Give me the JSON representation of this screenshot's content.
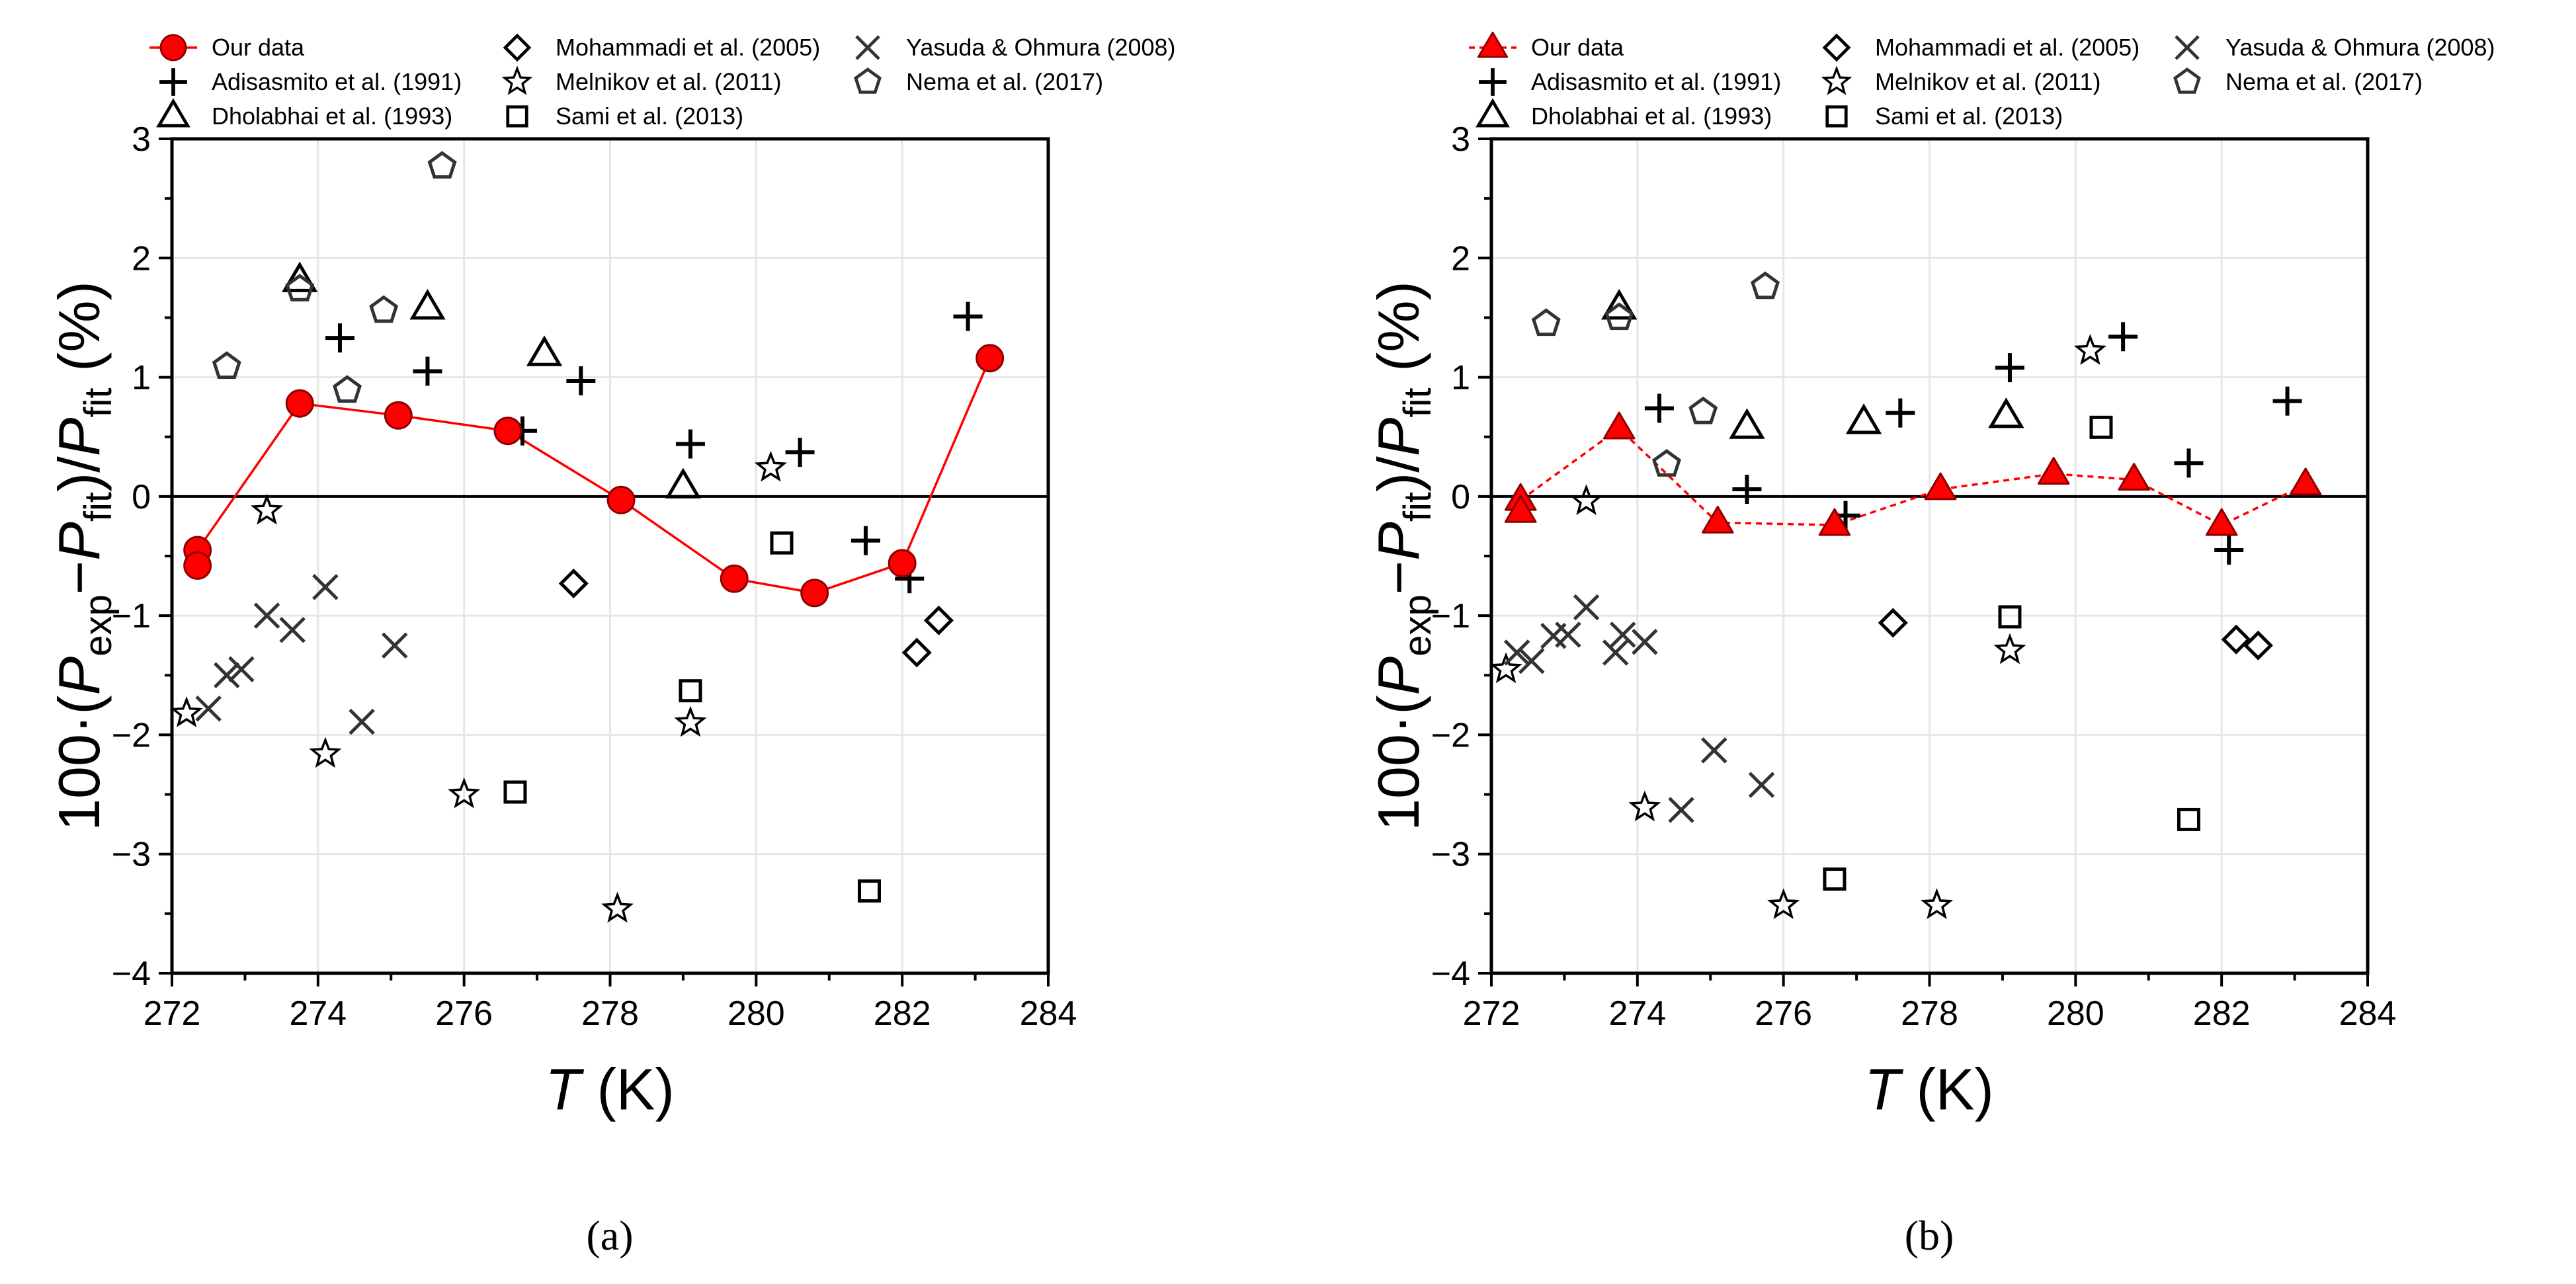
{
  "legend": {
    "items": [
      {
        "label": "Our data",
        "marker": "main"
      },
      {
        "label": "Adisasmito et al. (1991)",
        "marker": "plus"
      },
      {
        "label": "Dholabhai et al. (1993)",
        "marker": "triangle-open"
      },
      {
        "label": "Mohammadi et al. (2005)",
        "marker": "diamond"
      },
      {
        "label": "Melnikov et al. (2011)",
        "marker": "star"
      },
      {
        "label": "Sami et al. (2013)",
        "marker": "square"
      },
      {
        "label": "Yasuda & Ohmura (2008)",
        "marker": "cross"
      },
      {
        "label": "Nema et al. (2017)",
        "marker": "pentagon"
      }
    ]
  },
  "axes": {
    "ylabel_prefix": "100·(",
    "p_symbol": "P",
    "exp_sub": "exp",
    "minus": "−",
    "fit_sub": "fit",
    "slash": ")/",
    "ylabel_suffix": " (%)",
    "xlabel_var": "T",
    "xlabel_unit": " (K)"
  },
  "colors": {
    "accent": "#ff0000",
    "accent_dark": "#8b0000",
    "marker": "#000000",
    "grid": "#e6e6e6"
  },
  "chart_data": [
    {
      "panel_label": "(a)",
      "type": "scatter",
      "xlim": [
        272,
        284
      ],
      "ylim": [
        -4,
        3
      ],
      "xticks": [
        272,
        274,
        276,
        278,
        280,
        282,
        284
      ],
      "yticks": [
        -4,
        -3,
        -2,
        -1,
        0,
        1,
        2,
        3
      ],
      "main_series": {
        "name": "Our data",
        "marker": "circle",
        "line": "solid",
        "points": [
          [
            272.35,
            -0.45
          ],
          [
            272.35,
            -0.58
          ],
          [
            273.75,
            0.78
          ],
          [
            275.1,
            0.68
          ],
          [
            276.6,
            0.55
          ],
          [
            278.15,
            -0.03
          ],
          [
            279.7,
            -0.69
          ],
          [
            280.8,
            -0.81
          ],
          [
            282.0,
            -0.56
          ],
          [
            283.2,
            1.16
          ]
        ],
        "line_order": [
          [
            272.35,
            -0.45
          ],
          [
            273.75,
            0.78
          ],
          [
            275.1,
            0.68
          ],
          [
            276.6,
            0.55
          ],
          [
            278.15,
            -0.03
          ],
          [
            279.7,
            -0.69
          ],
          [
            280.8,
            -0.81
          ],
          [
            282.0,
            -0.56
          ],
          [
            283.2,
            1.16
          ]
        ]
      },
      "series": [
        {
          "name": "Adisasmito et al. (1991)",
          "marker": "plus",
          "points": [
            [
              274.3,
              1.33
            ],
            [
              275.5,
              1.05
            ],
            [
              276.8,
              0.55
            ],
            [
              277.6,
              0.97
            ],
            [
              279.1,
              0.44
            ],
            [
              280.6,
              0.37
            ],
            [
              281.5,
              -0.37
            ],
            [
              282.1,
              -0.69
            ],
            [
              282.9,
              1.51
            ]
          ]
        },
        {
          "name": "Dholabhai et al. (1993)",
          "marker": "triangle-open",
          "points": [
            [
              273.75,
              1.81
            ],
            [
              275.5,
              1.58
            ],
            [
              277.1,
              1.19
            ],
            [
              279.0,
              0.08
            ]
          ]
        },
        {
          "name": "Mohammadi et al. (2005)",
          "marker": "diamond",
          "points": [
            [
              277.5,
              -0.73
            ],
            [
              282.2,
              -1.31
            ],
            [
              282.5,
              -1.04
            ]
          ]
        },
        {
          "name": "Melnikov et al. (2011)",
          "marker": "star",
          "points": [
            [
              272.2,
              -1.82
            ],
            [
              273.3,
              -0.12
            ],
            [
              274.1,
              -2.16
            ],
            [
              276.0,
              -2.5
            ],
            [
              278.1,
              -3.46
            ],
            [
              279.1,
              -1.9
            ],
            [
              280.2,
              0.24
            ]
          ]
        },
        {
          "name": "Sami et al. (2013)",
          "marker": "square",
          "points": [
            [
              276.7,
              -2.48
            ],
            [
              279.1,
              -1.63
            ],
            [
              280.35,
              -0.39
            ],
            [
              281.55,
              -3.31
            ]
          ]
        },
        {
          "name": "Yasuda & Ohmura (2008)",
          "marker": "cross",
          "points": [
            [
              272.5,
              -1.78
            ],
            [
              272.75,
              -1.5
            ],
            [
              272.95,
              -1.45
            ],
            [
              273.3,
              -1.0
            ],
            [
              273.65,
              -1.12
            ],
            [
              274.1,
              -0.76
            ],
            [
              274.6,
              -1.89
            ],
            [
              275.05,
              -1.25
            ]
          ]
        },
        {
          "name": "Nema et al. (2017)",
          "marker": "pentagon",
          "points": [
            [
              272.75,
              1.09
            ],
            [
              273.75,
              1.74
            ],
            [
              274.4,
              0.89
            ],
            [
              274.9,
              1.56
            ],
            [
              275.7,
              2.77
            ]
          ]
        }
      ]
    },
    {
      "panel_label": "(b)",
      "type": "scatter",
      "xlim": [
        272,
        284
      ],
      "ylim": [
        -4,
        3
      ],
      "xticks": [
        272,
        274,
        276,
        278,
        280,
        282,
        284
      ],
      "yticks": [
        -4,
        -3,
        -2,
        -1,
        0,
        1,
        2,
        3
      ],
      "main_series": {
        "name": "Our data",
        "marker": "triangle",
        "line": "dashed",
        "points": [
          [
            272.4,
            -0.03
          ],
          [
            272.4,
            -0.13
          ],
          [
            273.75,
            0.57
          ],
          [
            275.1,
            -0.22
          ],
          [
            276.7,
            -0.24
          ],
          [
            278.15,
            0.06
          ],
          [
            279.7,
            0.19
          ],
          [
            280.8,
            0.14
          ],
          [
            282.0,
            -0.24
          ],
          [
            283.15,
            0.1
          ]
        ],
        "line_order": [
          [
            272.4,
            -0.03
          ],
          [
            273.75,
            0.57
          ],
          [
            275.1,
            -0.22
          ],
          [
            276.7,
            -0.24
          ],
          [
            278.15,
            0.06
          ],
          [
            279.7,
            0.19
          ],
          [
            280.8,
            0.14
          ],
          [
            282.0,
            -0.24
          ],
          [
            283.15,
            0.1
          ]
        ]
      },
      "series": [
        {
          "name": "Adisasmito et al. (1991)",
          "marker": "plus",
          "points": [
            [
              274.3,
              0.74
            ],
            [
              275.5,
              0.06
            ],
            [
              276.85,
              -0.16
            ],
            [
              277.6,
              0.7
            ],
            [
              279.1,
              1.08
            ],
            [
              280.65,
              1.34
            ],
            [
              281.55,
              0.28
            ],
            [
              282.1,
              -0.45
            ],
            [
              282.9,
              0.8
            ]
          ]
        },
        {
          "name": "Dholabhai et al. (1993)",
          "marker": "triangle-open",
          "points": [
            [
              273.75,
              1.58
            ],
            [
              275.5,
              0.58
            ],
            [
              277.1,
              0.62
            ],
            [
              279.05,
              0.67
            ]
          ]
        },
        {
          "name": "Mohammadi et al. (2005)",
          "marker": "diamond",
          "points": [
            [
              277.5,
              -1.06
            ],
            [
              282.2,
              -1.2
            ],
            [
              282.5,
              -1.25
            ]
          ]
        },
        {
          "name": "Melnikov et al. (2011)",
          "marker": "star",
          "points": [
            [
              272.2,
              -1.45
            ],
            [
              273.3,
              -0.04
            ],
            [
              274.1,
              -2.61
            ],
            [
              276.0,
              -3.43
            ],
            [
              278.1,
              -3.43
            ],
            [
              279.1,
              -1.29
            ],
            [
              280.2,
              1.22
            ]
          ]
        },
        {
          "name": "Sami et al. (2013)",
          "marker": "square",
          "points": [
            [
              276.7,
              -3.21
            ],
            [
              279.1,
              -1.01
            ],
            [
              280.35,
              0.58
            ],
            [
              281.55,
              -2.71
            ]
          ]
        },
        {
          "name": "Yasuda & Ohmura (2008)",
          "marker": "cross",
          "points": [
            [
              272.35,
              -1.31
            ],
            [
              272.55,
              -1.38
            ],
            [
              272.85,
              -1.17
            ],
            [
              273.05,
              -1.16
            ],
            [
              273.3,
              -0.93
            ],
            [
              273.7,
              -1.31
            ],
            [
              273.8,
              -1.16
            ],
            [
              274.1,
              -1.22
            ],
            [
              274.6,
              -2.63
            ],
            [
              275.05,
              -2.13
            ],
            [
              275.7,
              -2.42
            ]
          ]
        },
        {
          "name": "Nema et al. (2017)",
          "marker": "pentagon",
          "points": [
            [
              272.75,
              1.45
            ],
            [
              273.75,
              1.5
            ],
            [
              274.4,
              0.27
            ],
            [
              274.9,
              0.71
            ],
            [
              275.75,
              1.76
            ]
          ]
        }
      ]
    }
  ]
}
